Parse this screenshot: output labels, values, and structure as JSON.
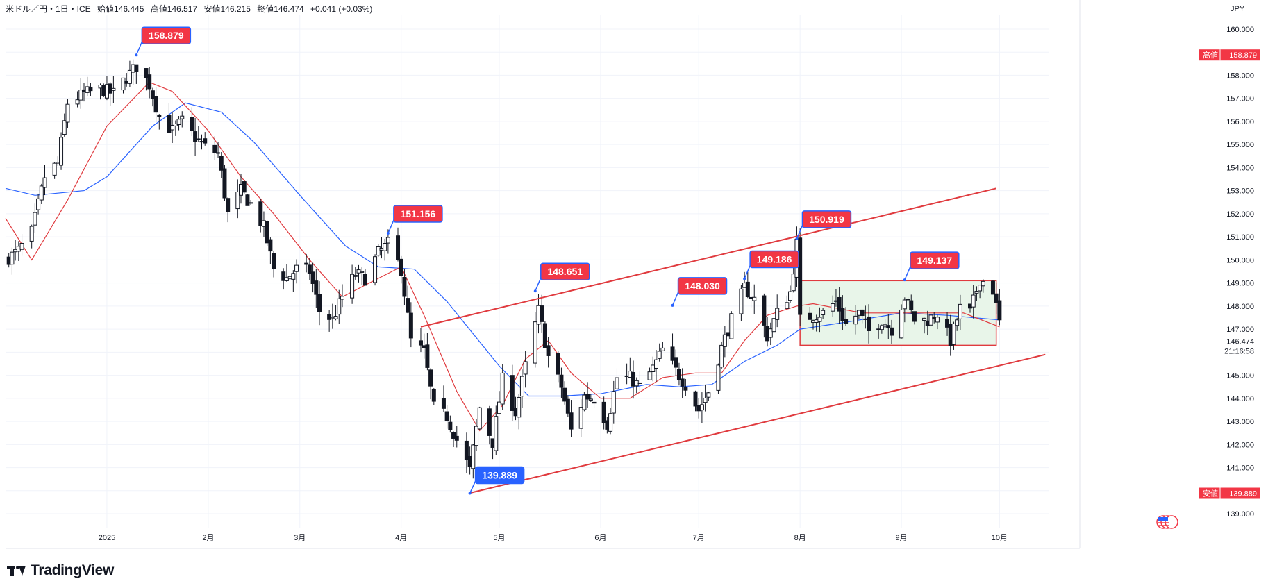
{
  "header": {
    "symbol": "米ドル／円・1日・ICE",
    "open_label": "始値146.445",
    "high_label": "高値146.517",
    "low_label": "安値146.215",
    "close_label": "終値146.474",
    "change_label": "+0.041 (+0.03%)"
  },
  "currency": "JPY",
  "brand": {
    "name": "TradingView"
  },
  "colors": {
    "up": "#131722",
    "down": "#131722",
    "grid": "#f0f3fa",
    "ma_short": "#e03a3e",
    "ma_long": "#2962ff",
    "annotation_red": "#f23645",
    "annotation_blue": "#2962ff",
    "range_fill": "#e8f5e9",
    "channel": "#e03a3e"
  },
  "chart_data": {
    "type": "candlestick",
    "title": "",
    "y_ticks": [
      139,
      140,
      141,
      142,
      143,
      144,
      145,
      146,
      147,
      148,
      149,
      150,
      151,
      152,
      153,
      154,
      155,
      156,
      157,
      158,
      159,
      160
    ],
    "y_tick_labels": [
      "139.000",
      "140.000",
      "141.000",
      "142.000",
      "143.000",
      "144.000",
      "145.000",
      "146.000",
      "147.000",
      "148.000",
      "149.000",
      "150.000",
      "151.000",
      "152.000",
      "153.000",
      "154.000",
      "155.000",
      "156.000",
      "157.000",
      "158.000",
      "159.000",
      "160.000"
    ],
    "ylim": [
      138.4,
      160.6
    ],
    "x_ticks": [
      {
        "label": "2025",
        "date": "2025-01-01"
      },
      {
        "label": "2月",
        "date": "2025-02-01"
      },
      {
        "label": "3月",
        "date": "2025-03-01"
      },
      {
        "label": "4月",
        "date": "2025-04-01"
      },
      {
        "label": "5月",
        "date": "2025-05-01"
      },
      {
        "label": "6月",
        "date": "2025-06-01"
      },
      {
        "label": "7月",
        "date": "2025-07-01"
      },
      {
        "label": "8月",
        "date": "2025-08-01"
      },
      {
        "label": "9月",
        "date": "2025-09-01"
      },
      {
        "label": "10月",
        "date": "2025-10-01"
      }
    ],
    "xlim": [
      "2024-12-01",
      "2025-10-16"
    ],
    "close_series": [
      [
        "2024-12-01",
        150.0
      ],
      [
        "2024-12-05",
        150.4
      ],
      [
        "2024-12-09",
        151.2
      ],
      [
        "2024-12-13",
        153.6
      ],
      [
        "2024-12-17",
        154.2
      ],
      [
        "2024-12-20",
        156.8
      ],
      [
        "2024-12-25",
        157.2
      ],
      [
        "2024-12-30",
        157.4
      ],
      [
        "2025-01-03",
        157.2
      ],
      [
        "2025-01-07",
        157.9
      ],
      [
        "2025-01-10",
        158.4
      ],
      [
        "2025-01-14",
        157.6
      ],
      [
        "2025-01-17",
        156.2
      ],
      [
        "2025-01-21",
        155.6
      ],
      [
        "2025-01-24",
        156.0
      ],
      [
        "2025-01-28",
        155.3
      ],
      [
        "2025-01-31",
        154.9
      ],
      [
        "2025-02-04",
        154.6
      ],
      [
        "2025-02-07",
        152.0
      ],
      [
        "2025-02-11",
        153.0
      ],
      [
        "2025-02-14",
        152.4
      ],
      [
        "2025-02-18",
        151.4
      ],
      [
        "2025-02-21",
        149.6
      ],
      [
        "2025-02-25",
        149.2
      ],
      [
        "2025-02-28",
        149.6
      ],
      [
        "2025-03-04",
        149.5
      ],
      [
        "2025-03-07",
        147.8
      ],
      [
        "2025-03-11",
        147.4
      ],
      [
        "2025-03-14",
        148.4
      ],
      [
        "2025-03-18",
        149.4
      ],
      [
        "2025-03-21",
        149.2
      ],
      [
        "2025-03-25",
        150.3
      ],
      [
        "2025-03-28",
        150.7
      ],
      [
        "2025-04-01",
        149.6
      ],
      [
        "2025-04-04",
        146.5
      ],
      [
        "2025-04-08",
        146.0
      ],
      [
        "2025-04-11",
        143.6
      ],
      [
        "2025-04-15",
        143.2
      ],
      [
        "2025-04-18",
        142.2
      ],
      [
        "2025-04-22",
        140.9
      ],
      [
        "2025-04-25",
        143.6
      ],
      [
        "2025-04-29",
        142.1
      ],
      [
        "2025-05-02",
        144.8
      ],
      [
        "2025-05-06",
        143.4
      ],
      [
        "2025-05-09",
        145.4
      ],
      [
        "2025-05-13",
        147.8
      ],
      [
        "2025-05-16",
        145.8
      ],
      [
        "2025-05-20",
        144.5
      ],
      [
        "2025-05-23",
        142.6
      ],
      [
        "2025-05-27",
        144.1
      ],
      [
        "2025-05-30",
        144.0
      ],
      [
        "2025-06-03",
        142.9
      ],
      [
        "2025-06-06",
        144.9
      ],
      [
        "2025-06-10",
        144.9
      ],
      [
        "2025-06-13",
        144.5
      ],
      [
        "2025-06-17",
        145.3
      ],
      [
        "2025-06-20",
        146.1
      ],
      [
        "2025-06-24",
        145.2
      ],
      [
        "2025-06-27",
        144.6
      ],
      [
        "2025-07-01",
        143.5
      ],
      [
        "2025-07-04",
        144.3
      ],
      [
        "2025-07-08",
        146.2
      ],
      [
        "2025-07-11",
        147.4
      ],
      [
        "2025-07-15",
        148.8
      ],
      [
        "2025-07-18",
        148.3
      ],
      [
        "2025-07-22",
        146.7
      ],
      [
        "2025-07-25",
        147.7
      ],
      [
        "2025-07-29",
        148.6
      ],
      [
        "2025-07-31",
        150.7
      ],
      [
        "2025-08-01",
        147.4
      ],
      [
        "2025-08-05",
        147.6
      ],
      [
        "2025-08-08",
        147.7
      ],
      [
        "2025-08-12",
        148.2
      ],
      [
        "2025-08-15",
        147.2
      ],
      [
        "2025-08-19",
        147.7
      ],
      [
        "2025-08-22",
        146.9
      ],
      [
        "2025-08-26",
        147.4
      ],
      [
        "2025-08-29",
        147.0
      ],
      [
        "2025-09-02",
        148.4
      ],
      [
        "2025-09-05",
        147.4
      ],
      [
        "2025-09-09",
        147.4
      ],
      [
        "2025-09-12",
        147.7
      ],
      [
        "2025-09-16",
        146.5
      ],
      [
        "2025-09-19",
        147.9
      ],
      [
        "2025-09-22",
        147.7
      ],
      [
        "2025-09-25",
        149.2
      ],
      [
        "2025-09-29",
        148.7
      ],
      [
        "2025-10-01",
        147.3
      ]
    ],
    "ma_short": [
      [
        "2024-12-01",
        151.8
      ],
      [
        "2024-12-09",
        150.0
      ],
      [
        "2024-12-20",
        152.6
      ],
      [
        "2025-01-01",
        155.8
      ],
      [
        "2025-01-14",
        157.7
      ],
      [
        "2025-01-21",
        157.3
      ],
      [
        "2025-02-01",
        155.6
      ],
      [
        "2025-02-11",
        153.6
      ],
      [
        "2025-02-21",
        152.0
      ],
      [
        "2025-03-04",
        150.0
      ],
      [
        "2025-03-14",
        148.4
      ],
      [
        "2025-03-25",
        149.2
      ],
      [
        "2025-04-01",
        149.7
      ],
      [
        "2025-04-08",
        147.6
      ],
      [
        "2025-04-18",
        144.3
      ],
      [
        "2025-04-25",
        142.6
      ],
      [
        "2025-05-02",
        143.7
      ],
      [
        "2025-05-09",
        145.7
      ],
      [
        "2025-05-16",
        146.5
      ],
      [
        "2025-05-23",
        145.1
      ],
      [
        "2025-06-01",
        144.0
      ],
      [
        "2025-06-10",
        144.0
      ],
      [
        "2025-06-20",
        144.9
      ],
      [
        "2025-06-30",
        145.1
      ],
      [
        "2025-07-08",
        145.1
      ],
      [
        "2025-07-15",
        146.5
      ],
      [
        "2025-07-22",
        147.6
      ],
      [
        "2025-07-31",
        148.0
      ],
      [
        "2025-08-05",
        148.1
      ],
      [
        "2025-08-20",
        147.7
      ],
      [
        "2025-09-05",
        147.7
      ],
      [
        "2025-09-20",
        147.7
      ],
      [
        "2025-10-01",
        147.1
      ]
    ],
    "ma_long": [
      [
        "2024-12-01",
        153.1
      ],
      [
        "2024-12-10",
        152.8
      ],
      [
        "2024-12-25",
        153.0
      ],
      [
        "2025-01-01",
        153.6
      ],
      [
        "2025-01-15",
        155.8
      ],
      [
        "2025-01-25",
        156.8
      ],
      [
        "2025-02-05",
        156.4
      ],
      [
        "2025-02-15",
        155.1
      ],
      [
        "2025-03-01",
        152.8
      ],
      [
        "2025-03-15",
        150.6
      ],
      [
        "2025-03-25",
        149.7
      ],
      [
        "2025-04-05",
        149.6
      ],
      [
        "2025-04-15",
        148.2
      ],
      [
        "2025-05-01",
        145.4
      ],
      [
        "2025-05-10",
        144.1
      ],
      [
        "2025-05-20",
        144.1
      ],
      [
        "2025-06-01",
        144.2
      ],
      [
        "2025-06-15",
        144.6
      ],
      [
        "2025-06-25",
        144.5
      ],
      [
        "2025-07-05",
        144.6
      ],
      [
        "2025-07-15",
        145.6
      ],
      [
        "2025-07-25",
        146.3
      ],
      [
        "2025-08-01",
        147.0
      ],
      [
        "2025-08-15",
        147.3
      ],
      [
        "2025-09-01",
        147.7
      ],
      [
        "2025-09-15",
        147.6
      ],
      [
        "2025-10-01",
        147.4
      ]
    ],
    "annotations": [
      {
        "label": "158.879",
        "date": "2025-01-10",
        "value": 158.879,
        "color": "red",
        "dir": "up"
      },
      {
        "label": "151.156",
        "date": "2025-03-28",
        "value": 151.156,
        "color": "red",
        "dir": "up"
      },
      {
        "label": "148.651",
        "date": "2025-05-12",
        "value": 148.651,
        "color": "red",
        "dir": "up"
      },
      {
        "label": "148.030",
        "date": "2025-06-23",
        "value": 148.03,
        "color": "red",
        "dir": "up"
      },
      {
        "label": "149.186",
        "date": "2025-07-15",
        "value": 149.186,
        "color": "red",
        "dir": "up"
      },
      {
        "label": "150.919",
        "date": "2025-07-31",
        "value": 150.919,
        "color": "red",
        "dir": "up"
      },
      {
        "label": "149.137",
        "date": "2025-09-02",
        "value": 149.137,
        "color": "red",
        "dir": "up"
      },
      {
        "label": "139.889",
        "date": "2025-04-22",
        "value": 139.889,
        "color": "blue",
        "dir": "down"
      }
    ],
    "channel_upper": [
      [
        "2025-04-07",
        147.1
      ],
      [
        "2025-09-30",
        153.1
      ]
    ],
    "channel_lower": [
      [
        "2025-04-22",
        139.9
      ],
      [
        "2025-10-15",
        145.9
      ]
    ],
    "range_box": {
      "start": "2025-08-01",
      "end": "2025-09-30",
      "low": 146.3,
      "high": 149.1
    },
    "last_price": {
      "value": 146.474,
      "label": "146.474",
      "countdown": "21:16:58"
    },
    "price_tags": [
      {
        "name": "高値",
        "value": 158.879,
        "label": "158.879"
      },
      {
        "name": "安値",
        "value": 139.889,
        "label": "139.889"
      }
    ]
  }
}
